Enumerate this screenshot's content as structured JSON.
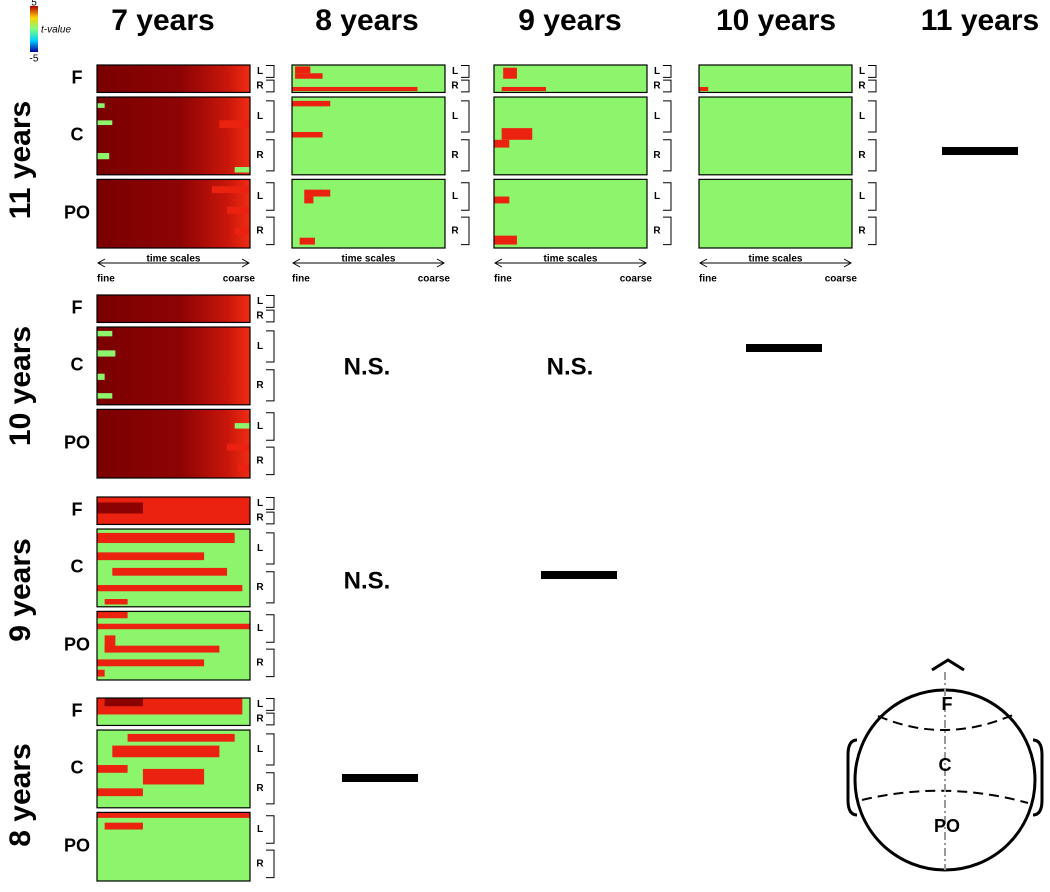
{
  "column_headers": [
    "7 years",
    "8 years",
    "9 years",
    "10 years",
    "11 years"
  ],
  "row_headers": [
    "11 years",
    "10 years",
    "9 years",
    "8 years"
  ],
  "colorbar": {
    "max": "5",
    "label": "t-value",
    "min": "-5"
  },
  "regions": [
    "F",
    "C",
    "PO"
  ],
  "hemispheres": [
    "L",
    "R"
  ],
  "time_axis": {
    "label": "time scales",
    "start": "fine",
    "end": "coarse"
  },
  "not_significant": "N.S.",
  "head": {
    "labels": [
      "F",
      "C",
      "PO"
    ]
  }
}
